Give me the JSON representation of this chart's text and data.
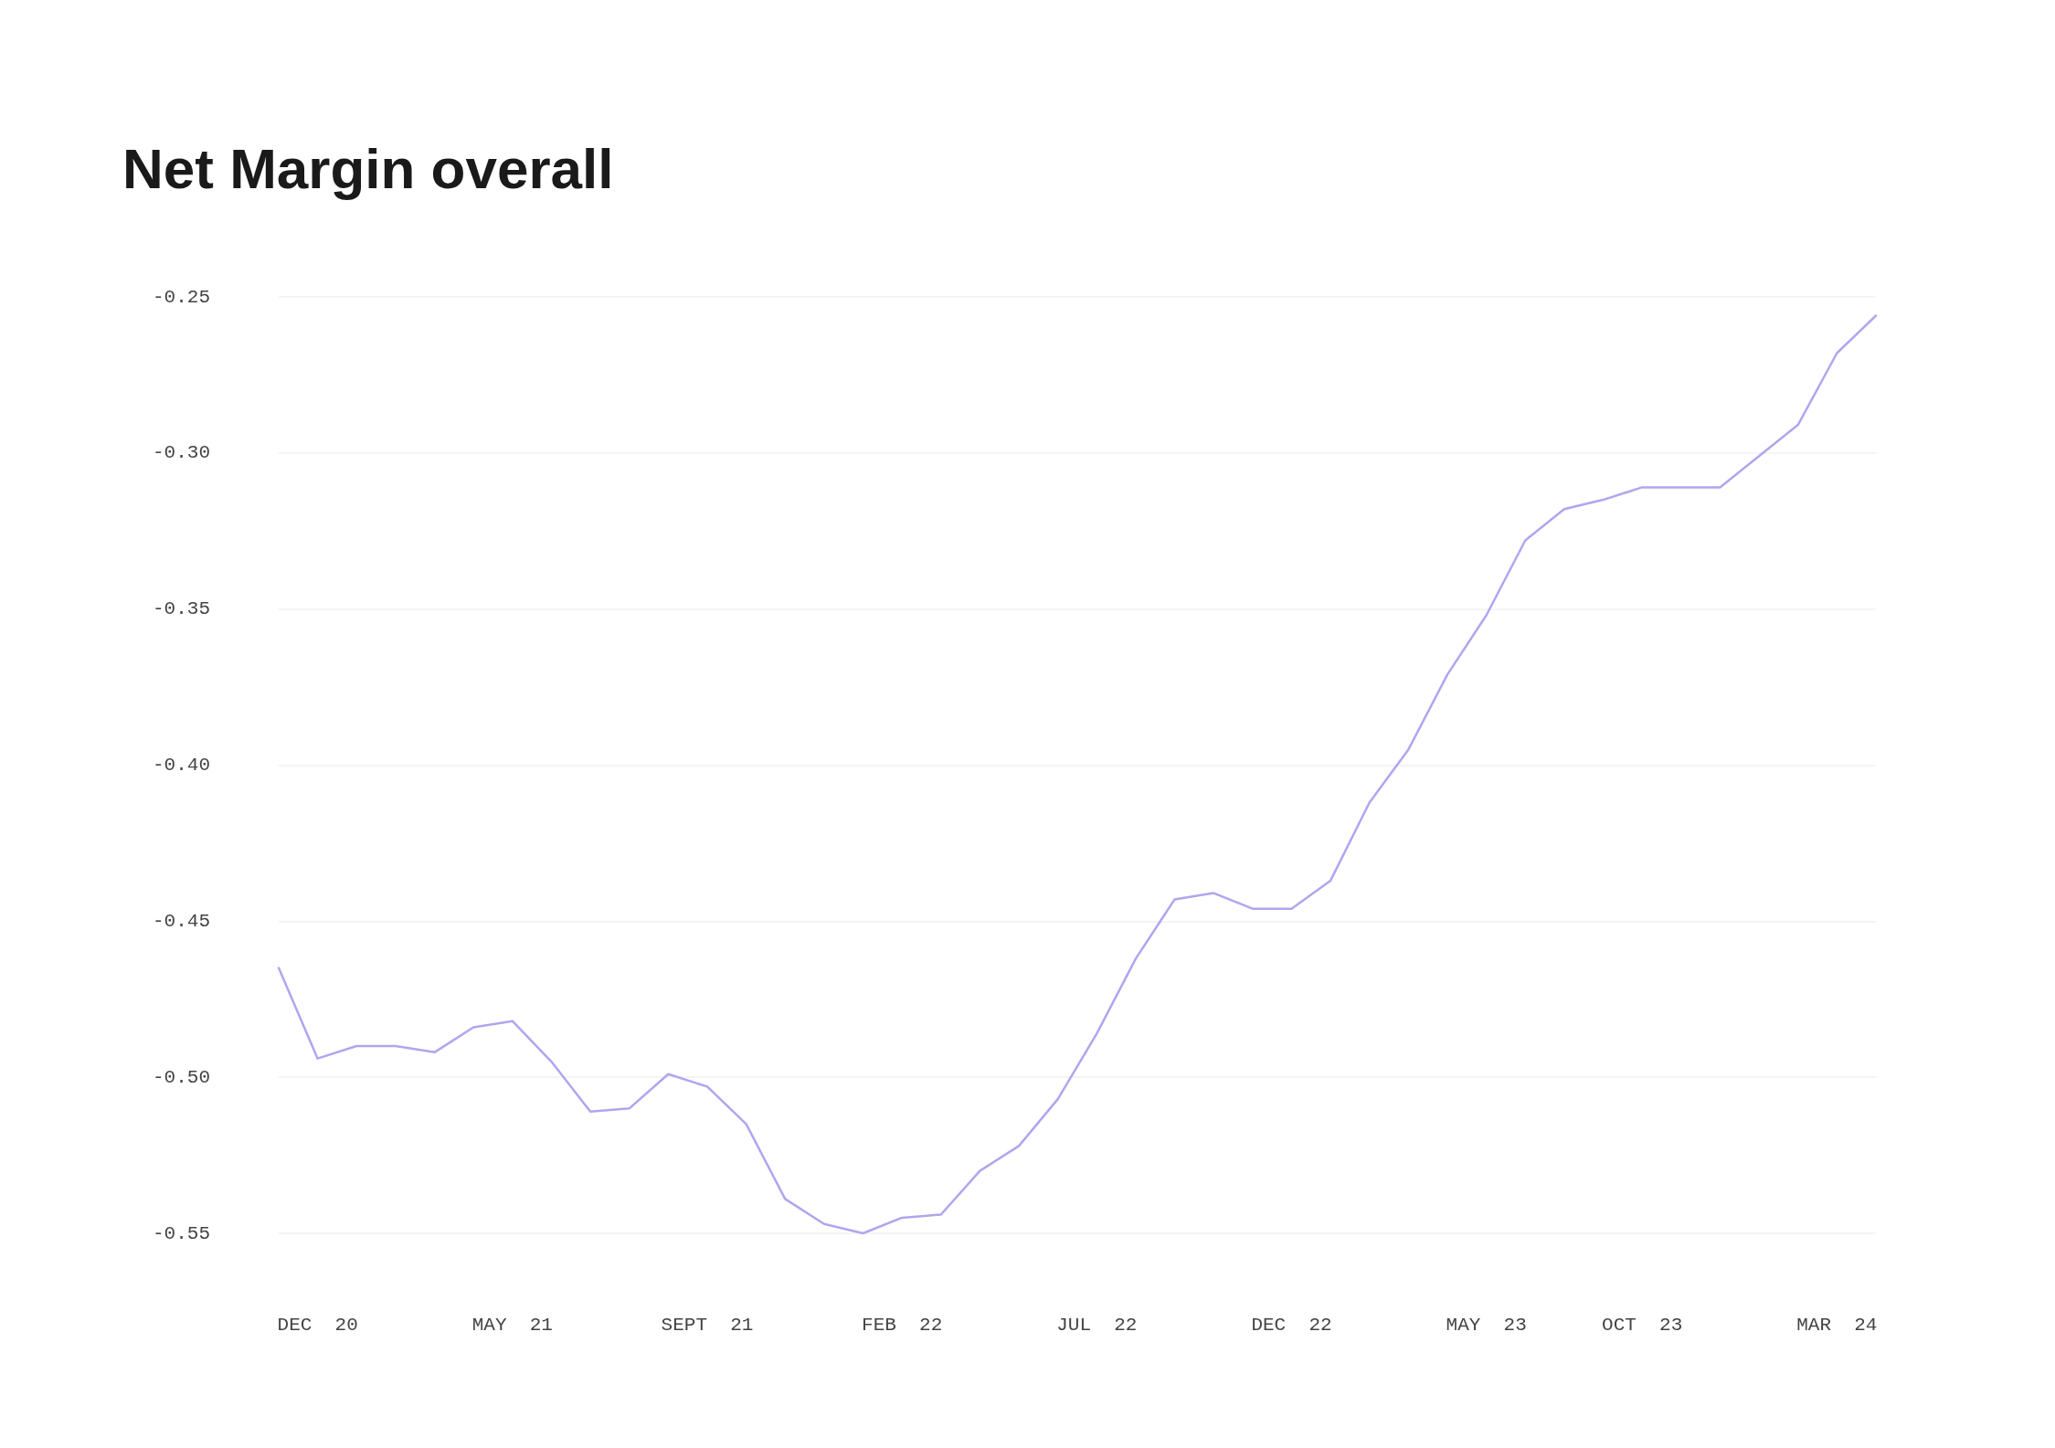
{
  "chart_data": {
    "type": "line",
    "title": "Net Margin overall",
    "categories": [
      null,
      "DEC  20",
      null,
      null,
      null,
      null,
      "MAY  21",
      null,
      null,
      null,
      null,
      "SEPT  21",
      null,
      null,
      null,
      null,
      "FEB  22",
      null,
      null,
      null,
      null,
      "JUL  22",
      null,
      null,
      null,
      null,
      "DEC  22",
      null,
      null,
      null,
      null,
      "MAY  23",
      null,
      null,
      null,
      "OCT  23",
      null,
      null,
      null,
      null,
      "MAR  24",
      null
    ],
    "series": [
      {
        "color": "#b3a4f0",
        "values": [
          -0.465,
          -0.494,
          -0.49,
          -0.49,
          -0.492,
          -0.484,
          -0.482,
          -0.495,
          -0.511,
          -0.51,
          -0.499,
          -0.503,
          -0.515,
          -0.539,
          -0.547,
          -0.55,
          -0.545,
          -0.544,
          -0.53,
          -0.522,
          -0.507,
          -0.486,
          -0.462,
          -0.443,
          -0.441,
          -0.446,
          -0.446,
          -0.437,
          -0.412,
          -0.395,
          -0.371,
          -0.352,
          -0.328,
          -0.318,
          -0.315,
          -0.311,
          -0.311,
          -0.311,
          -0.301,
          -0.291,
          -0.268,
          -0.256
        ]
      }
    ],
    "ylim": [
      -0.55,
      -0.25
    ],
    "yticks": [
      {
        "value": -0.55,
        "label": "-0.55"
      },
      {
        "value": -0.5,
        "label": "-0.50"
      },
      {
        "value": -0.45,
        "label": "-0.45"
      },
      {
        "value": -0.4,
        "label": "-0.40"
      },
      {
        "value": -0.35,
        "label": "-0.35"
      },
      {
        "value": -0.3,
        "label": "-0.30"
      },
      {
        "value": -0.25,
        "label": "-0.25"
      }
    ],
    "grid": "y",
    "marker": "none",
    "line_style": "solid"
  }
}
